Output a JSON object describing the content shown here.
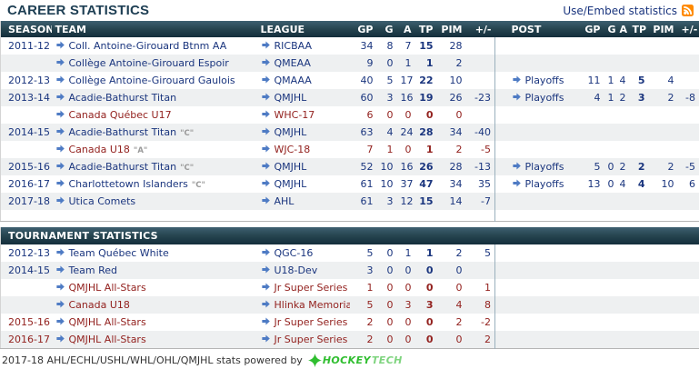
{
  "header": {
    "title": "CAREER STATISTICS",
    "embed_label": "Use/Embed statistics"
  },
  "columns": [
    "SEASON",
    "TEAM",
    "LEAGUE",
    "GP",
    "G",
    "A",
    "TP",
    "PIM",
    "+/-",
    "",
    "POST",
    "GP",
    "G",
    "A",
    "TP",
    "PIM",
    "+/-"
  ],
  "career": {
    "rows": [
      {
        "season": "2011-12",
        "team": "Coll. Antoine-Girouard Btnm AA",
        "cap": "",
        "league": "RICBAA",
        "gp": "34",
        "g": "8",
        "a": "7",
        "tp": "15",
        "pim": "28",
        "pm": "",
        "post": "",
        "p_gp": "",
        "p_g": "",
        "p_a": "",
        "p_tp": "",
        "p_pim": "",
        "p_pm": "",
        "color": "blue"
      },
      {
        "season": "",
        "team": "Collège Antoine-Girouard Espoir",
        "cap": "",
        "league": "QMEAA",
        "gp": "9",
        "g": "0",
        "a": "1",
        "tp": "1",
        "pim": "2",
        "pm": "",
        "post": "",
        "p_gp": "",
        "p_g": "",
        "p_a": "",
        "p_tp": "",
        "p_pim": "",
        "p_pm": "",
        "color": "blue"
      },
      {
        "season": "2012-13",
        "team": "Collège Antoine-Girouard Gaulois",
        "cap": "",
        "league": "QMAAA",
        "gp": "40",
        "g": "5",
        "a": "17",
        "tp": "22",
        "pim": "10",
        "pm": "",
        "post": "Playoffs",
        "p_gp": "11",
        "p_g": "1",
        "p_a": "4",
        "p_tp": "5",
        "p_pim": "4",
        "p_pm": "",
        "color": "blue"
      },
      {
        "season": "2013-14",
        "team": "Acadie-Bathurst Titan",
        "cap": "",
        "league": "QMJHL",
        "gp": "60",
        "g": "3",
        "a": "16",
        "tp": "19",
        "pim": "26",
        "pm": "-23",
        "post": "Playoffs",
        "p_gp": "4",
        "p_g": "1",
        "p_a": "2",
        "p_tp": "3",
        "p_pim": "2",
        "p_pm": "-8",
        "color": "blue"
      },
      {
        "season": "",
        "team": "Canada Québec U17",
        "cap": "",
        "league": "WHC-17",
        "gp": "6",
        "g": "0",
        "a": "0",
        "tp": "0",
        "pim": "0",
        "pm": "",
        "post": "",
        "p_gp": "",
        "p_g": "",
        "p_a": "",
        "p_tp": "",
        "p_pim": "",
        "p_pm": "",
        "color": "red"
      },
      {
        "season": "2014-15",
        "team": "Acadie-Bathurst Titan",
        "cap": "C",
        "league": "QMJHL",
        "gp": "63",
        "g": "4",
        "a": "24",
        "tp": "28",
        "pim": "34",
        "pm": "-40",
        "post": "",
        "p_gp": "",
        "p_g": "",
        "p_a": "",
        "p_tp": "",
        "p_pim": "",
        "p_pm": "",
        "color": "blue"
      },
      {
        "season": "",
        "team": "Canada U18",
        "cap": "A",
        "league": "WJC-18",
        "gp": "7",
        "g": "1",
        "a": "0",
        "tp": "1",
        "pim": "2",
        "pm": "-5",
        "post": "",
        "p_gp": "",
        "p_g": "",
        "p_a": "",
        "p_tp": "",
        "p_pim": "",
        "p_pm": "",
        "color": "red"
      },
      {
        "season": "2015-16",
        "team": "Acadie-Bathurst Titan",
        "cap": "C",
        "league": "QMJHL",
        "gp": "52",
        "g": "10",
        "a": "16",
        "tp": "26",
        "pim": "28",
        "pm": "-13",
        "post": "Playoffs",
        "p_gp": "5",
        "p_g": "0",
        "p_a": "2",
        "p_tp": "2",
        "p_pim": "2",
        "p_pm": "-5",
        "color": "blue"
      },
      {
        "season": "2016-17",
        "team": "Charlottetown Islanders",
        "cap": "C",
        "league": "QMJHL",
        "gp": "61",
        "g": "10",
        "a": "37",
        "tp": "47",
        "pim": "34",
        "pm": "35",
        "post": "Playoffs",
        "p_gp": "13",
        "p_g": "0",
        "p_a": "4",
        "p_tp": "4",
        "p_pim": "10",
        "p_pm": "6",
        "color": "blue"
      },
      {
        "season": "2017-18",
        "team": "Utica Comets",
        "cap": "",
        "league": "AHL",
        "gp": "61",
        "g": "3",
        "a": "12",
        "tp": "15",
        "pim": "14",
        "pm": "-7",
        "post": "",
        "p_gp": "",
        "p_g": "",
        "p_a": "",
        "p_tp": "",
        "p_pim": "",
        "p_pm": "",
        "color": "blue"
      }
    ]
  },
  "tournament": {
    "title": "TOURNAMENT STATISTICS",
    "rows": [
      {
        "season": "2012-13",
        "team": "Team Québec White",
        "cap": "",
        "league": "QGC-16",
        "gp": "5",
        "g": "0",
        "a": "1",
        "tp": "1",
        "pim": "2",
        "pm": "5",
        "post": "",
        "p_gp": "",
        "p_g": "",
        "p_a": "",
        "p_tp": "",
        "p_pim": "",
        "p_pm": "",
        "color": "blue"
      },
      {
        "season": "2014-15",
        "team": "Team Red",
        "cap": "",
        "league": "U18-Dev",
        "gp": "3",
        "g": "0",
        "a": "0",
        "tp": "0",
        "pim": "0",
        "pm": "",
        "post": "",
        "p_gp": "",
        "p_g": "",
        "p_a": "",
        "p_tp": "",
        "p_pim": "",
        "p_pm": "",
        "color": "blue"
      },
      {
        "season": "",
        "team": "QMJHL All-Stars",
        "cap": "",
        "league": "Jr Super Series",
        "gp": "1",
        "g": "0",
        "a": "0",
        "tp": "0",
        "pim": "0",
        "pm": "1",
        "post": "",
        "p_gp": "",
        "p_g": "",
        "p_a": "",
        "p_tp": "",
        "p_pim": "",
        "p_pm": "",
        "color": "red"
      },
      {
        "season": "",
        "team": "Canada U18",
        "cap": "",
        "league": "Hlinka Memorial",
        "gp": "5",
        "g": "0",
        "a": "3",
        "tp": "3",
        "pim": "4",
        "pm": "8",
        "post": "",
        "p_gp": "",
        "p_g": "",
        "p_a": "",
        "p_tp": "",
        "p_pim": "",
        "p_pm": "",
        "color": "red"
      },
      {
        "season": "2015-16",
        "team": "QMJHL All-Stars",
        "cap": "",
        "league": "Jr Super Series",
        "gp": "2",
        "g": "0",
        "a": "0",
        "tp": "0",
        "pim": "2",
        "pm": "-2",
        "post": "",
        "p_gp": "",
        "p_g": "",
        "p_a": "",
        "p_tp": "",
        "p_pim": "",
        "p_pm": "",
        "color": "red"
      },
      {
        "season": "2016-17",
        "team": "QMJHL All-Stars",
        "cap": "",
        "league": "Jr Super Series",
        "gp": "2",
        "g": "0",
        "a": "0",
        "tp": "0",
        "pim": "0",
        "pm": "2",
        "post": "",
        "p_gp": "",
        "p_g": "",
        "p_a": "",
        "p_tp": "",
        "p_pim": "",
        "p_pm": "",
        "color": "red"
      }
    ]
  },
  "footer": {
    "text": "2017-18 AHL/ECHL/USHL/WHL/OHL/QMJHL stats powered by",
    "logo_part1": "Hockey",
    "logo_part2": "Tech"
  },
  "colors": {
    "accent_navy": "#1a357e",
    "accent_red": "#93221f",
    "arrow_blue": "#4e7bc4",
    "bar_gradient_top": "#3d5f70",
    "bar_gradient_bottom": "#142e3c",
    "alt_row": "#eef0f1",
    "rss_orange": "#ff8a00",
    "logo_green": "#2fbe2f",
    "captain_gray": "#9a9a9a"
  }
}
